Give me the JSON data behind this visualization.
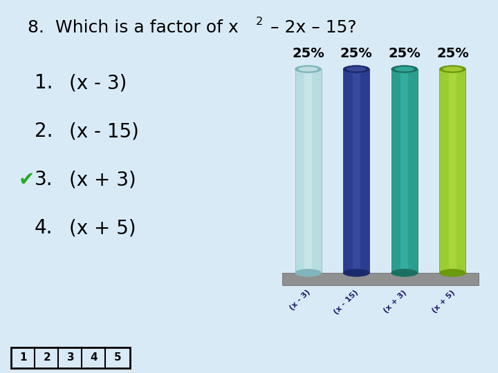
{
  "background_color": "#d9eaf7",
  "bar_labels": [
    "(x - 3)",
    "(x - 15)",
    "(x + 3)",
    "(x + 5)"
  ],
  "bar_values": [
    25,
    25,
    25,
    25
  ],
  "bar_colors": [
    "#b8dde0",
    "#2b3d8f",
    "#2a9d8f",
    "#9acd32"
  ],
  "bar_highlight": [
    "#d8eef0",
    "#4455aa",
    "#3dbdaf",
    "#bbdd44"
  ],
  "bar_shadow": [
    "#80b5bb",
    "#1a2a6b",
    "#1a7060",
    "#6b9a10"
  ],
  "percent_labels": [
    "25%",
    "25%",
    "25%",
    "25%"
  ],
  "answers": [
    "(x - 3)",
    "(x - 15)",
    "(x + 3)",
    "(x + 5)"
  ],
  "correct_index": 2,
  "checkmark": "✔",
  "nav_labels": [
    "1",
    "2",
    "3",
    "4",
    "5"
  ],
  "title_part1": "8.  Which is a factor of x",
  "title_part2": "2",
  "title_part3": " – 2x – 15?",
  "title_fontsize": 18,
  "answer_fontsize": 20,
  "pct_fontsize": 14,
  "nav_fontsize": 11,
  "label_fontsize": 8
}
